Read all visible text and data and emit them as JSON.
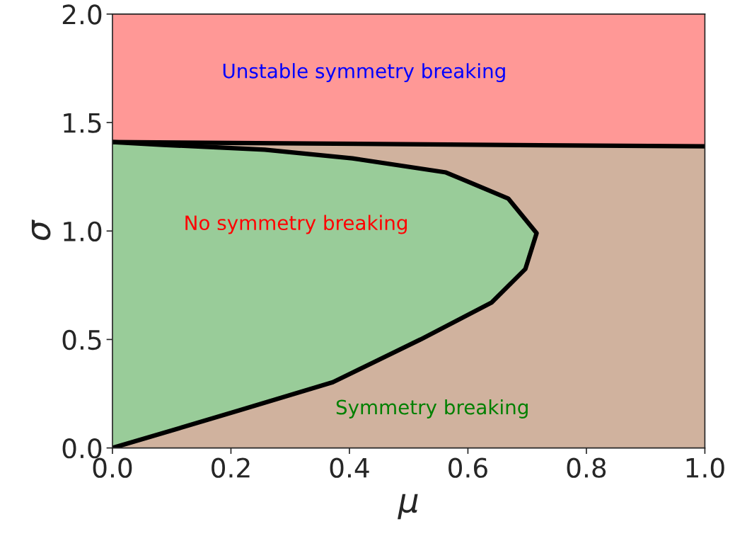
{
  "chart_data": {
    "type": "line",
    "xlabel": "μ",
    "ylabel": "σ",
    "xlim": [
      0.0,
      1.0
    ],
    "xticks": [
      {
        "value": 0,
        "label": "0.0"
      },
      0.2,
      0.4,
      0.6,
      0.8,
      {
        "value": 1,
        "label": "1.0"
      }
    ],
    "ylim": [
      0.0,
      2.0
    ],
    "yticks": [
      {
        "value": 0,
        "label": "0.0"
      },
      0.5,
      {
        "value": 1,
        "label": "1.0"
      },
      1.5,
      {
        "value": 2,
        "label": "2.0"
      }
    ],
    "grid": false,
    "legend": false,
    "series": [
      {
        "color": "#000000",
        "x": [
          0.0,
          1.0
        ],
        "values": [
          1.41,
          1.39
        ]
      },
      {
        "color": "#000000",
        "x": [
          0.0,
          0.214,
          0.372,
          0.52,
          0.64,
          0.697,
          0.716,
          0.668,
          0.563,
          0.405,
          0.257,
          0.085,
          0.0
        ],
        "values": [
          0.0,
          0.173,
          0.303,
          0.5,
          0.67,
          0.825,
          0.99,
          1.15,
          1.27,
          1.335,
          1.375,
          1.397,
          1.41
        ]
      }
    ],
    "annotations": [
      "Unstable symmetry breaking",
      "No symmetry breaking",
      "Symmetry breaking"
    ]
  }
}
